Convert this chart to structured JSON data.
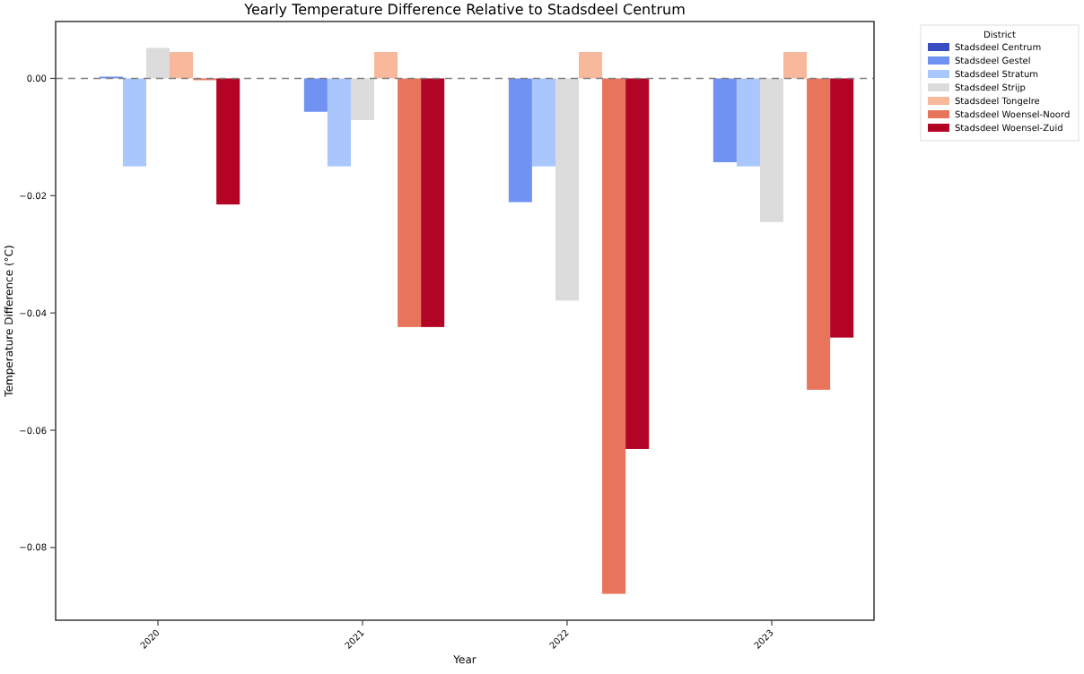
{
  "chart_data": {
    "type": "bar",
    "title": "Yearly Temperature Difference Relative to Stadsdeel Centrum",
    "xlabel": "Year",
    "ylabel": "Temperature Difference (°C)",
    "legend_title": "District",
    "legend": "top right",
    "categories": [
      "2020",
      "2021",
      "2022",
      "2023"
    ],
    "ylim": [
      -0.0924,
      0.0097
    ],
    "yticks": [
      {
        "value": 0,
        "label": "0.00"
      },
      {
        "value": -0.02,
        "label": "−0.02"
      },
      {
        "value": -0.04,
        "label": "−0.04"
      },
      {
        "value": -0.06,
        "label": "−0.06"
      },
      {
        "value": -0.08,
        "label": "−0.08"
      }
    ],
    "ref_lines": [
      {
        "axis": "y",
        "value": 0,
        "color": "#808080",
        "line_style": "dashed"
      }
    ],
    "series": [
      {
        "name": "Stadsdeel Centrum",
        "color": "#3b4cc0",
        "values": [
          0,
          0,
          0,
          0
        ]
      },
      {
        "name": "Stadsdeel Gestel",
        "color": "#6f92f3",
        "values": [
          0.0003,
          -0.0057,
          -0.0211,
          -0.0143
        ]
      },
      {
        "name": "Stadsdeel Stratum",
        "color": "#aac7fd",
        "values": [
          -0.015,
          -0.015,
          -0.015,
          -0.015
        ]
      },
      {
        "name": "Stadsdeel Strijp",
        "color": "#dddcdc",
        "values": [
          0.0052,
          -0.0071,
          -0.0379,
          -0.0245
        ]
      },
      {
        "name": "Stadsdeel Tongelre",
        "color": "#f7b89c",
        "values": [
          0.0045,
          0.0045,
          0.0045,
          0.0045
        ]
      },
      {
        "name": "Stadsdeel Woensel-Noord",
        "color": "#e7745b",
        "values": [
          -0.0003,
          -0.0424,
          -0.0879,
          -0.0531
        ]
      },
      {
        "name": "Stadsdeel Woensel-Zuid",
        "color": "#b40426",
        "values": [
          -0.0215,
          -0.0424,
          -0.0632,
          -0.0442
        ]
      }
    ]
  }
}
